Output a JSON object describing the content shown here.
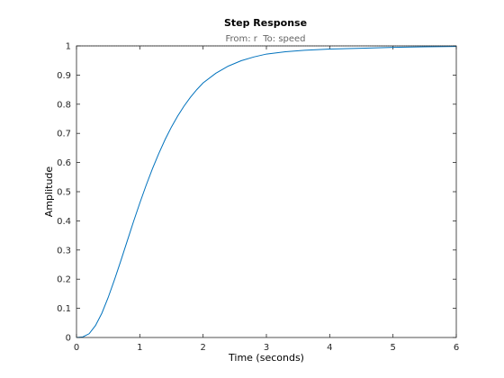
{
  "chart_data": {
    "type": "line",
    "title": "Step Response",
    "subtitle": "From: r  To: speed",
    "xlabel": "Time (seconds)",
    "ylabel": "Amplitude",
    "xlim": [
      0,
      6
    ],
    "ylim": [
      0,
      1
    ],
    "xticks": [
      0,
      1,
      2,
      3,
      4,
      5,
      6
    ],
    "yticks": [
      0,
      0.1,
      0.2,
      0.3,
      0.4,
      0.5,
      0.6,
      0.7,
      0.8,
      0.9,
      1
    ],
    "grid": false,
    "reference_line": {
      "y": 1,
      "style": "dotted"
    },
    "series": [
      {
        "color": "#0072bd",
        "x": [
          0,
          0.1,
          0.2,
          0.3,
          0.4,
          0.5,
          0.6,
          0.7,
          0.8,
          0.9,
          1.0,
          1.1,
          1.2,
          1.3,
          1.4,
          1.5,
          1.6,
          1.7,
          1.8,
          1.9,
          2.0,
          2.2,
          2.4,
          2.6,
          2.8,
          3.0,
          3.3,
          3.6,
          4.0,
          4.5,
          5.0,
          5.5,
          6.0
        ],
        "y": [
          0,
          0.002,
          0.013,
          0.041,
          0.083,
          0.137,
          0.198,
          0.263,
          0.33,
          0.397,
          0.461,
          0.522,
          0.579,
          0.631,
          0.679,
          0.722,
          0.76,
          0.794,
          0.824,
          0.85,
          0.873,
          0.906,
          0.931,
          0.949,
          0.962,
          0.972,
          0.98,
          0.985,
          0.989,
          0.992,
          0.995,
          0.997,
          0.998
        ]
      }
    ]
  }
}
